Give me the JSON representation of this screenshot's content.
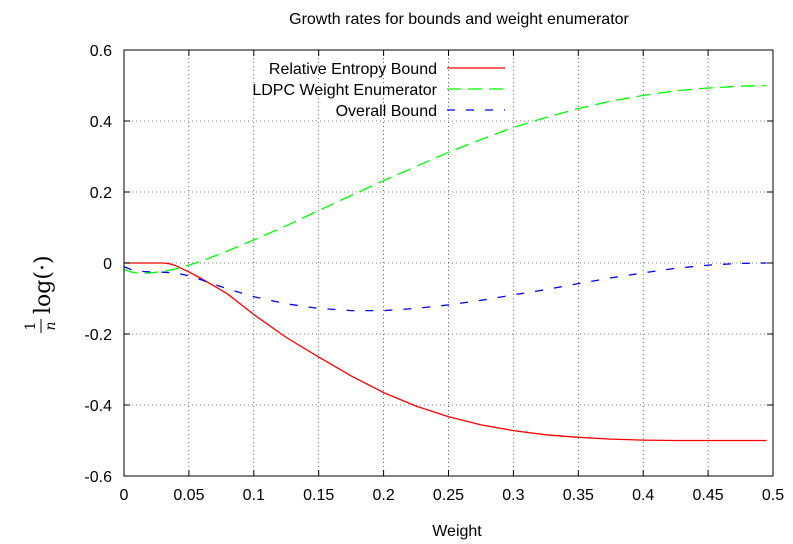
{
  "chart_data": {
    "type": "line",
    "title": "Growth rates for bounds and weight enumerator",
    "xlabel": "Weight",
    "ylabel": {
      "numerator": "1",
      "denominator": "n",
      "expr": "log(·)"
    },
    "xlim": [
      0,
      0.5
    ],
    "ylim": [
      -0.6,
      0.6
    ],
    "xticks": [
      0,
      0.05,
      0.1,
      0.15,
      0.2,
      0.25,
      0.3,
      0.35,
      0.4,
      0.45,
      0.5
    ],
    "xtick_labels": [
      "0",
      "0.05",
      "0.1",
      "0.15",
      "0.2",
      "0.25",
      "0.3",
      "0.35",
      "0.4",
      "0.45",
      "0.5"
    ],
    "yticks": [
      0.6,
      0.4,
      0.2,
      0,
      -0.2,
      -0.4,
      -0.6
    ],
    "ytick_labels": [
      "0.6",
      "0.4",
      "0.2",
      "0",
      "-0.2",
      "-0.4",
      "-0.6"
    ],
    "grid": true,
    "legend_position": "top-left",
    "series": [
      {
        "name": "Relative Entropy Bound",
        "color": "#ff0000",
        "dash": "solid",
        "x": [
          0,
          0.01,
          0.02,
          0.03,
          0.035,
          0.04,
          0.05,
          0.06,
          0.07,
          0.08,
          0.1,
          0.125,
          0.15,
          0.175,
          0.2,
          0.225,
          0.25,
          0.275,
          0.3,
          0.325,
          0.35,
          0.375,
          0.4,
          0.425,
          0.45,
          0.475,
          0.495
        ],
        "y": [
          0,
          0,
          0,
          0,
          -0.002,
          -0.008,
          -0.025,
          -0.045,
          -0.066,
          -0.088,
          -0.145,
          -0.21,
          -0.265,
          -0.318,
          -0.365,
          -0.403,
          -0.433,
          -0.456,
          -0.472,
          -0.484,
          -0.491,
          -0.496,
          -0.499,
          -0.5,
          -0.5,
          -0.5,
          -0.5
        ]
      },
      {
        "name": "LDPC Weight Enumerator",
        "color": "#00ff00",
        "dash": "long",
        "x": [
          0,
          0.005,
          0.01,
          0.015,
          0.02,
          0.03,
          0.04,
          0.05,
          0.06,
          0.07,
          0.08,
          0.1,
          0.125,
          0.15,
          0.175,
          0.2,
          0.225,
          0.25,
          0.275,
          0.3,
          0.325,
          0.35,
          0.375,
          0.4,
          0.425,
          0.45,
          0.475,
          0.495
        ],
        "y": [
          -0.018,
          -0.025,
          -0.028,
          -0.029,
          -0.028,
          -0.024,
          -0.016,
          -0.006,
          0.006,
          0.02,
          0.034,
          0.065,
          0.105,
          0.148,
          0.19,
          0.232,
          0.272,
          0.312,
          0.348,
          0.382,
          0.41,
          0.435,
          0.456,
          0.472,
          0.485,
          0.493,
          0.498,
          0.5
        ]
      },
      {
        "name": "Overall Bound",
        "color": "#0000ff",
        "dash": "short",
        "x": [
          0,
          0.005,
          0.01,
          0.015,
          0.02,
          0.03,
          0.04,
          0.05,
          0.06,
          0.07,
          0.08,
          0.1,
          0.125,
          0.15,
          0.175,
          0.2,
          0.225,
          0.25,
          0.275,
          0.3,
          0.325,
          0.35,
          0.375,
          0.4,
          0.425,
          0.45,
          0.475,
          0.495
        ],
        "y": [
          -0.01,
          -0.018,
          -0.022,
          -0.024,
          -0.025,
          -0.026,
          -0.028,
          -0.036,
          -0.048,
          -0.061,
          -0.073,
          -0.095,
          -0.115,
          -0.128,
          -0.134,
          -0.134,
          -0.128,
          -0.118,
          -0.105,
          -0.09,
          -0.075,
          -0.058,
          -0.042,
          -0.028,
          -0.015,
          -0.006,
          -0.001,
          0
        ]
      }
    ]
  }
}
